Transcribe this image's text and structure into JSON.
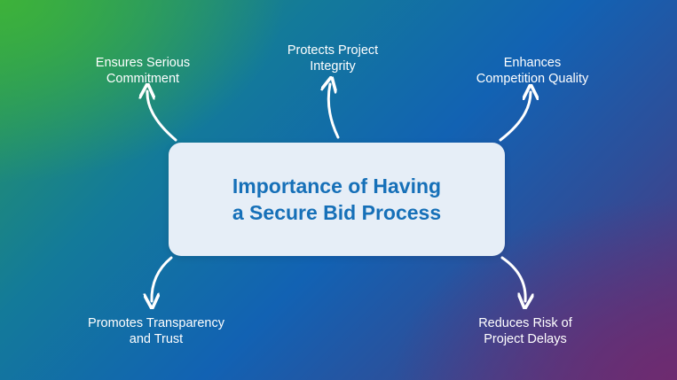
{
  "center": {
    "line1": "Importance of Having",
    "line2": "a Secure Bid Process"
  },
  "nodes": [
    {
      "line1": "Ensures Serious",
      "line2": "Commitment"
    },
    {
      "line1": "Protects Project",
      "line2": "Integrity"
    },
    {
      "line1": "Enhances",
      "line2": "Competition Quality"
    },
    {
      "line1": "Promotes Transparency",
      "line2": "and Trust"
    },
    {
      "line1": "Reduces Risk of",
      "line2": "Project Delays"
    }
  ],
  "colors": {
    "center_text": "#1670b8",
    "center_box": "#e6eef7",
    "label_text": "#ffffff",
    "arrow": "#ffffff"
  }
}
